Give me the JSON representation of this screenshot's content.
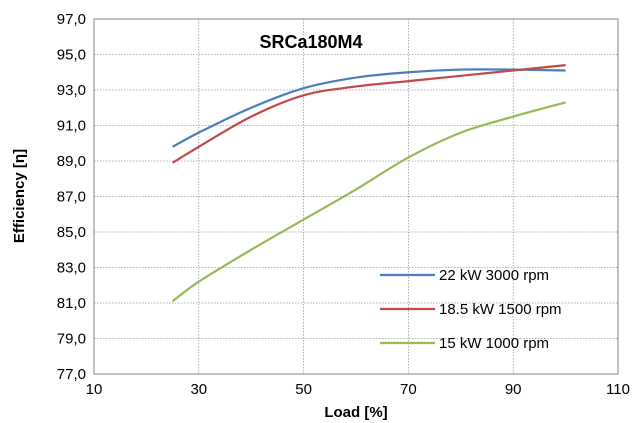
{
  "chart_data": {
    "type": "line",
    "title": "SRCa180M4",
    "xlabel": "Load [%]",
    "ylabel": "Efficiency [η]",
    "xlim": [
      10,
      110
    ],
    "ylim": [
      77.0,
      97.0
    ],
    "xticks": [
      "10",
      "30",
      "50",
      "70",
      "90",
      "110"
    ],
    "yticks": [
      "77,0",
      "79,0",
      "81,0",
      "83,0",
      "85,0",
      "87,0",
      "89,0",
      "91,0",
      "93,0",
      "95,0",
      "97,0"
    ],
    "grid": true,
    "legend_position": "bottom-right",
    "series": [
      {
        "name": "22 kW 3000 rpm",
        "color": "#4a7ebb",
        "x": [
          25,
          30,
          40,
          50,
          60,
          70,
          80,
          90,
          100
        ],
        "y": [
          89.8,
          90.6,
          92.0,
          93.1,
          93.7,
          94.0,
          94.15,
          94.15,
          94.1
        ]
      },
      {
        "name": "18.5 kW 1500 rpm",
        "color": "#be4b48",
        "x": [
          25,
          30,
          40,
          50,
          60,
          70,
          80,
          90,
          100
        ],
        "y": [
          88.9,
          89.8,
          91.5,
          92.7,
          93.2,
          93.5,
          93.8,
          94.1,
          94.4
        ]
      },
      {
        "name": "15 kW 1000 rpm",
        "color": "#98b954",
        "x": [
          25,
          30,
          40,
          50,
          60,
          70,
          80,
          90,
          100
        ],
        "y": [
          81.1,
          82.2,
          84.0,
          85.7,
          87.4,
          89.2,
          90.6,
          91.5,
          92.3
        ]
      }
    ]
  }
}
